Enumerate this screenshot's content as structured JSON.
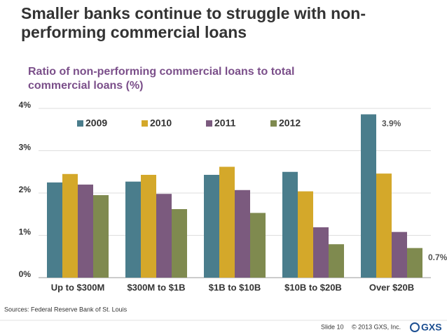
{
  "chart_data": {
    "type": "bar",
    "title": "Smaller banks continue to struggle with non-performing commercial loans",
    "subtitle": "Ratio of non-performing commercial loans to total commercial loans (%)",
    "categories": [
      "Up to $300M",
      "$300M to $1B",
      "$1B to $10B",
      "$10B to $20B",
      "Over $20B"
    ],
    "series": [
      {
        "name": "2009",
        "color": "#4a7d8c",
        "values": [
          2.25,
          2.27,
          2.43,
          2.5,
          3.86
        ],
        "value_labels": [
          null,
          null,
          null,
          null,
          "3.9%"
        ]
      },
      {
        "name": "2010",
        "color": "#d4a82a",
        "values": [
          2.45,
          2.43,
          2.62,
          2.04,
          2.46
        ]
      },
      {
        "name": "2011",
        "color": "#7b5a7e",
        "values": [
          2.2,
          1.98,
          2.07,
          1.19,
          1.08
        ]
      },
      {
        "name": "2012",
        "color": "#7f8a4f",
        "values": [
          1.95,
          1.62,
          1.53,
          0.79,
          0.7
        ],
        "value_labels": [
          null,
          null,
          null,
          null,
          "0.7%"
        ]
      }
    ],
    "ylim": [
      0,
      4
    ],
    "yticks": [
      {
        "value": 0,
        "label": "0%"
      },
      {
        "value": 1,
        "label": "1%"
      },
      {
        "value": 2,
        "label": "2%"
      },
      {
        "value": 3,
        "label": "3%"
      },
      {
        "value": 4,
        "label": "4%"
      }
    ],
    "grid": true,
    "legend": "top",
    "source": "Sources: Federal Reserve Bank of St. Louis"
  },
  "footer": {
    "slide": "Slide 10",
    "copyright": "© 2013 GXS, Inc.",
    "logo": "GXS"
  }
}
